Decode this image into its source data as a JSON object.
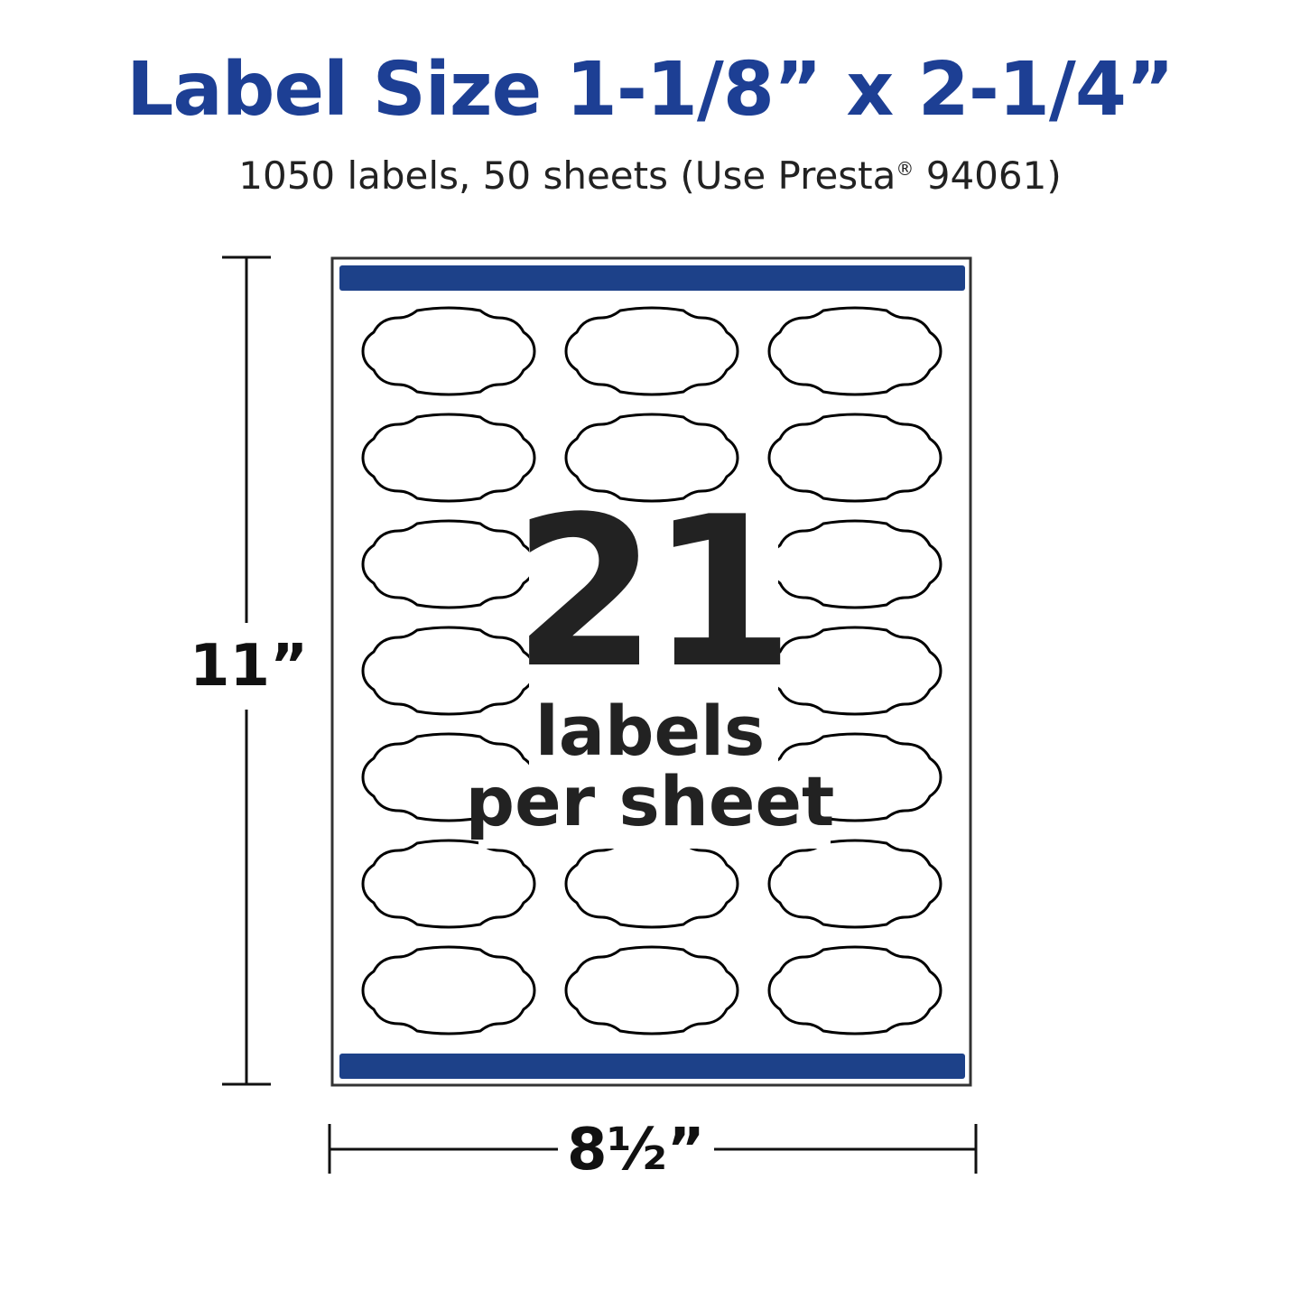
{
  "title": "Label Size 1-1/8” x 2-1/4”",
  "subtitle": {
    "text": "1050 labels, 50 sheets (Use Presta",
    "reg": "®",
    "suffix": " 94061)"
  },
  "sheet": {
    "rows": 7,
    "columns": 3,
    "bar_color": "#1d4189",
    "label_shape": "scalloped-oval"
  },
  "callout": {
    "count": "21",
    "line1": "labels",
    "line2": "per sheet"
  },
  "dimensions": {
    "height": "11”",
    "width": "8½”"
  },
  "colors": {
    "title": "#1d3f94",
    "text": "#222222"
  }
}
